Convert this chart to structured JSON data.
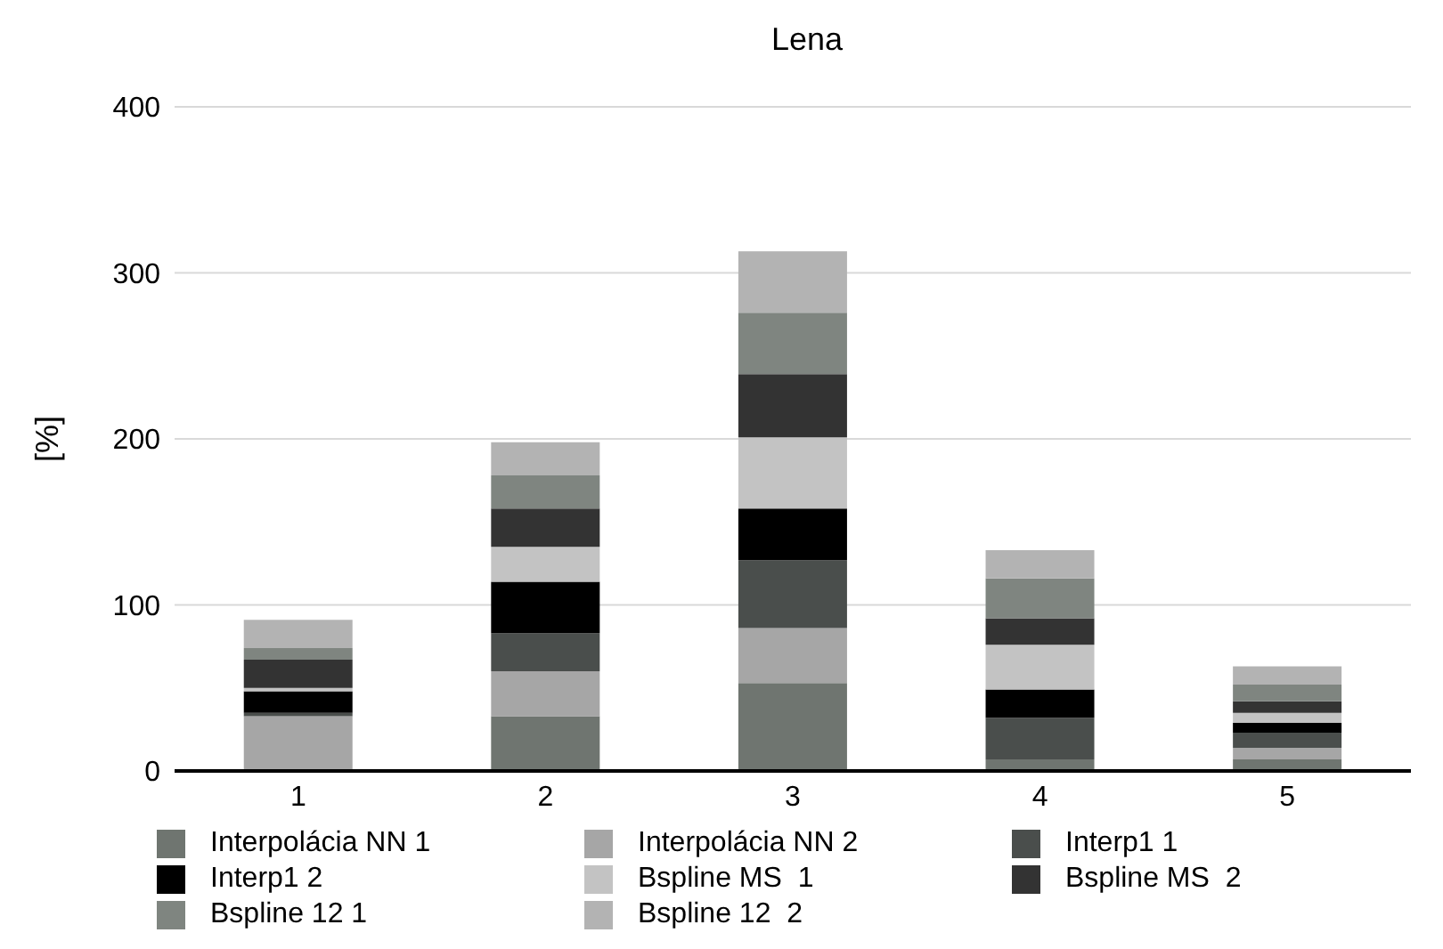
{
  "chart_data": {
    "type": "bar",
    "title": "Lena",
    "ylabel": "[%]",
    "stacked": true,
    "categories": [
      "1",
      "2",
      "3",
      "4",
      "5"
    ],
    "ylim": [
      0,
      400
    ],
    "yticks": [
      0,
      100,
      200,
      300,
      400
    ],
    "grid": "y",
    "legend": "bottom",
    "series": [
      {
        "name": "Interpolácia NN 1",
        "color": "#6f7570",
        "values": [
          0,
          33,
          53,
          7,
          7
        ]
      },
      {
        "name": "Interpolácia NN 2",
        "color": "#a6a6a6",
        "values": [
          33,
          27,
          33,
          0,
          7
        ]
      },
      {
        "name": "Interp1 1",
        "color": "#4a4e4c",
        "values": [
          2,
          23,
          41,
          25,
          9
        ]
      },
      {
        "name": "Interp1 2",
        "color": "#000000",
        "values": [
          13,
          31,
          31,
          17,
          6
        ]
      },
      {
        "name": "Bspline MS  1",
        "color": "#c3c3c3",
        "values": [
          2,
          21,
          43,
          27,
          6
        ]
      },
      {
        "name": "Bspline MS  2",
        "color": "#333333",
        "values": [
          17,
          23,
          38,
          16,
          7
        ]
      },
      {
        "name": "Bspline 12 1",
        "color": "#7f8580",
        "values": [
          7,
          20,
          37,
          24,
          10
        ]
      },
      {
        "name": "Bspline 12  2",
        "color": "#b3b3b3",
        "values": [
          17,
          20,
          37,
          17,
          11
        ]
      }
    ]
  }
}
